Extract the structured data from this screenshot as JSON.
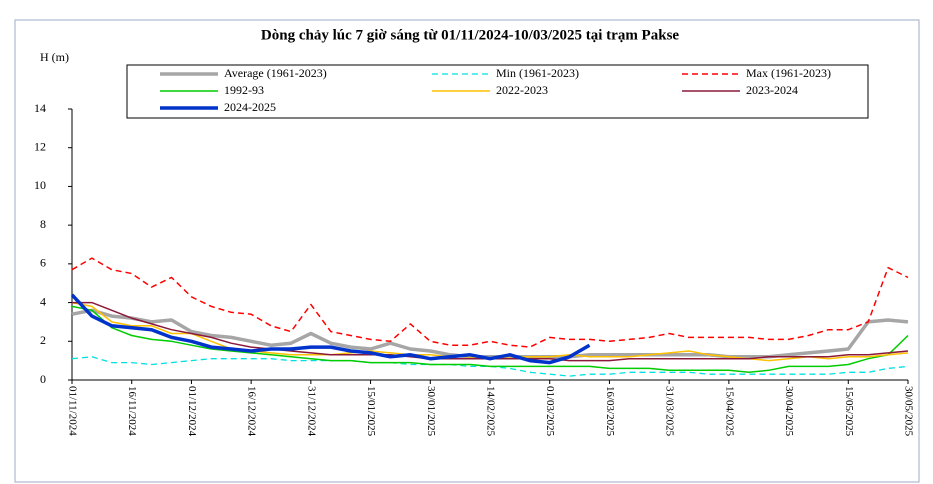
{
  "chart_data": {
    "type": "line",
    "title": "Dòng chảy lúc 7 giờ sáng từ 01/11/2024-10/03/2025 tại trạm Pakse",
    "y_label": "H (m)",
    "categories": [
      "01/11/2024",
      null,
      null,
      "16/11/2024",
      null,
      null,
      "01/12/2024",
      null,
      null,
      "16/12/2024",
      null,
      null,
      "31/12/2024",
      null,
      null,
      "15/01/2025",
      null,
      null,
      "30/01/2025",
      null,
      null,
      "14/02/2025",
      null,
      null,
      "01/03/2025",
      null,
      null,
      "16/03/2025",
      null,
      null,
      "31/03/2025",
      null,
      null,
      "15/04/2025",
      null,
      null,
      "30/04/2025",
      null,
      null,
      "15/05/2025",
      null,
      null,
      "30/05/2025"
    ],
    "series": [
      {
        "name": "Average (1961-2023)",
        "color": "#a6a6a6",
        "dashed": false,
        "values": [
          3.4,
          3.6,
          3.3,
          3.2,
          3.0,
          3.1,
          2.5,
          2.3,
          2.2,
          2.0,
          1.8,
          1.9,
          2.4,
          1.9,
          1.7,
          1.6,
          1.9,
          1.6,
          1.5,
          1.3,
          1.2,
          1.2,
          1.2,
          1.2,
          1.2,
          1.2,
          1.3,
          1.3,
          1.3,
          1.3,
          1.3,
          1.3,
          1.3,
          1.2,
          1.2,
          1.2,
          1.3,
          1.4,
          1.5,
          1.6,
          3.0,
          3.1,
          3.0
        ]
      },
      {
        "name": "Min (1961-2023)",
        "color": "#00e0e0",
        "dashed": true,
        "values": [
          1.1,
          1.2,
          0.9,
          0.9,
          0.8,
          0.9,
          1.0,
          1.1,
          1.1,
          1.1,
          1.1,
          1.0,
          1.0,
          1.0,
          1.0,
          0.9,
          0.9,
          0.8,
          0.8,
          0.8,
          0.7,
          0.7,
          0.6,
          0.4,
          0.3,
          0.2,
          0.3,
          0.3,
          0.4,
          0.4,
          0.4,
          0.4,
          0.3,
          0.3,
          0.3,
          0.3,
          0.3,
          0.3,
          0.3,
          0.4,
          0.4,
          0.6,
          0.7
        ]
      },
      {
        "name": "Max (1961-2023)",
        "color": "#ff0000",
        "dashed": true,
        "values": [
          5.7,
          6.3,
          5.7,
          5.5,
          4.8,
          5.3,
          4.3,
          3.8,
          3.5,
          3.4,
          2.8,
          2.5,
          3.9,
          2.5,
          2.3,
          2.1,
          2.0,
          2.9,
          2.0,
          1.8,
          1.8,
          2.0,
          1.8,
          1.7,
          2.2,
          2.1,
          2.1,
          2.0,
          2.1,
          2.2,
          2.4,
          2.2,
          2.2,
          2.2,
          2.2,
          2.1,
          2.1,
          2.3,
          2.6,
          2.6,
          3.0,
          5.8,
          5.3
        ]
      },
      {
        "name": "1992-93",
        "color": "#00cc00",
        "dashed": false,
        "values": [
          3.8,
          3.6,
          2.7,
          2.3,
          2.1,
          2.0,
          1.8,
          1.6,
          1.5,
          1.4,
          1.3,
          1.2,
          1.1,
          1.0,
          1.0,
          0.9,
          0.9,
          0.9,
          0.8,
          0.8,
          0.8,
          0.7,
          0.7,
          0.7,
          0.7,
          0.7,
          0.7,
          0.6,
          0.6,
          0.6,
          0.5,
          0.5,
          0.5,
          0.5,
          0.4,
          0.5,
          0.7,
          0.7,
          0.7,
          0.8,
          1.1,
          1.3,
          2.3
        ]
      },
      {
        "name": "2022-2023",
        "color": "#ffc000",
        "dashed": false,
        "values": [
          4.0,
          3.8,
          3.0,
          2.8,
          2.8,
          2.4,
          2.4,
          2.0,
          1.6,
          1.5,
          1.4,
          1.3,
          1.3,
          1.3,
          1.4,
          1.5,
          1.4,
          1.3,
          1.3,
          1.2,
          1.2,
          1.1,
          1.2,
          1.2,
          1.2,
          1.3,
          1.2,
          1.2,
          1.2,
          1.3,
          1.4,
          1.5,
          1.3,
          1.2,
          1.1,
          1.0,
          1.1,
          1.2,
          1.1,
          1.2,
          1.2,
          1.3,
          1.4
        ]
      },
      {
        "name": "2023-2024",
        "color": "#8b1a3a",
        "dashed": false,
        "values": [
          4.0,
          4.0,
          3.6,
          3.2,
          2.9,
          2.6,
          2.4,
          2.2,
          1.9,
          1.7,
          1.6,
          1.5,
          1.4,
          1.3,
          1.3,
          1.3,
          1.3,
          1.2,
          1.1,
          1.1,
          1.1,
          1.1,
          1.1,
          1.1,
          1.1,
          1.0,
          1.0,
          1.0,
          1.1,
          1.1,
          1.1,
          1.1,
          1.1,
          1.1,
          1.1,
          1.2,
          1.2,
          1.2,
          1.2,
          1.3,
          1.3,
          1.4,
          1.5
        ]
      },
      {
        "name": "2024-2025",
        "color": "#0033cc",
        "dashed": false,
        "values": [
          4.4,
          3.3,
          2.8,
          2.7,
          2.6,
          2.2,
          2.0,
          1.7,
          1.6,
          1.5,
          1.6,
          1.6,
          1.7,
          1.7,
          1.5,
          1.4,
          1.2,
          1.3,
          1.1,
          1.2,
          1.3,
          1.1,
          1.3,
          1.0,
          0.9,
          1.2,
          1.8,
          null,
          null,
          null,
          null,
          null,
          null,
          null,
          null,
          null,
          null,
          null,
          null,
          null,
          null,
          null,
          null
        ]
      }
    ],
    "ylim": [
      0,
      14
    ],
    "yticks": [
      0,
      2,
      4,
      6,
      8,
      10,
      12,
      14
    ],
    "grid": false
  }
}
